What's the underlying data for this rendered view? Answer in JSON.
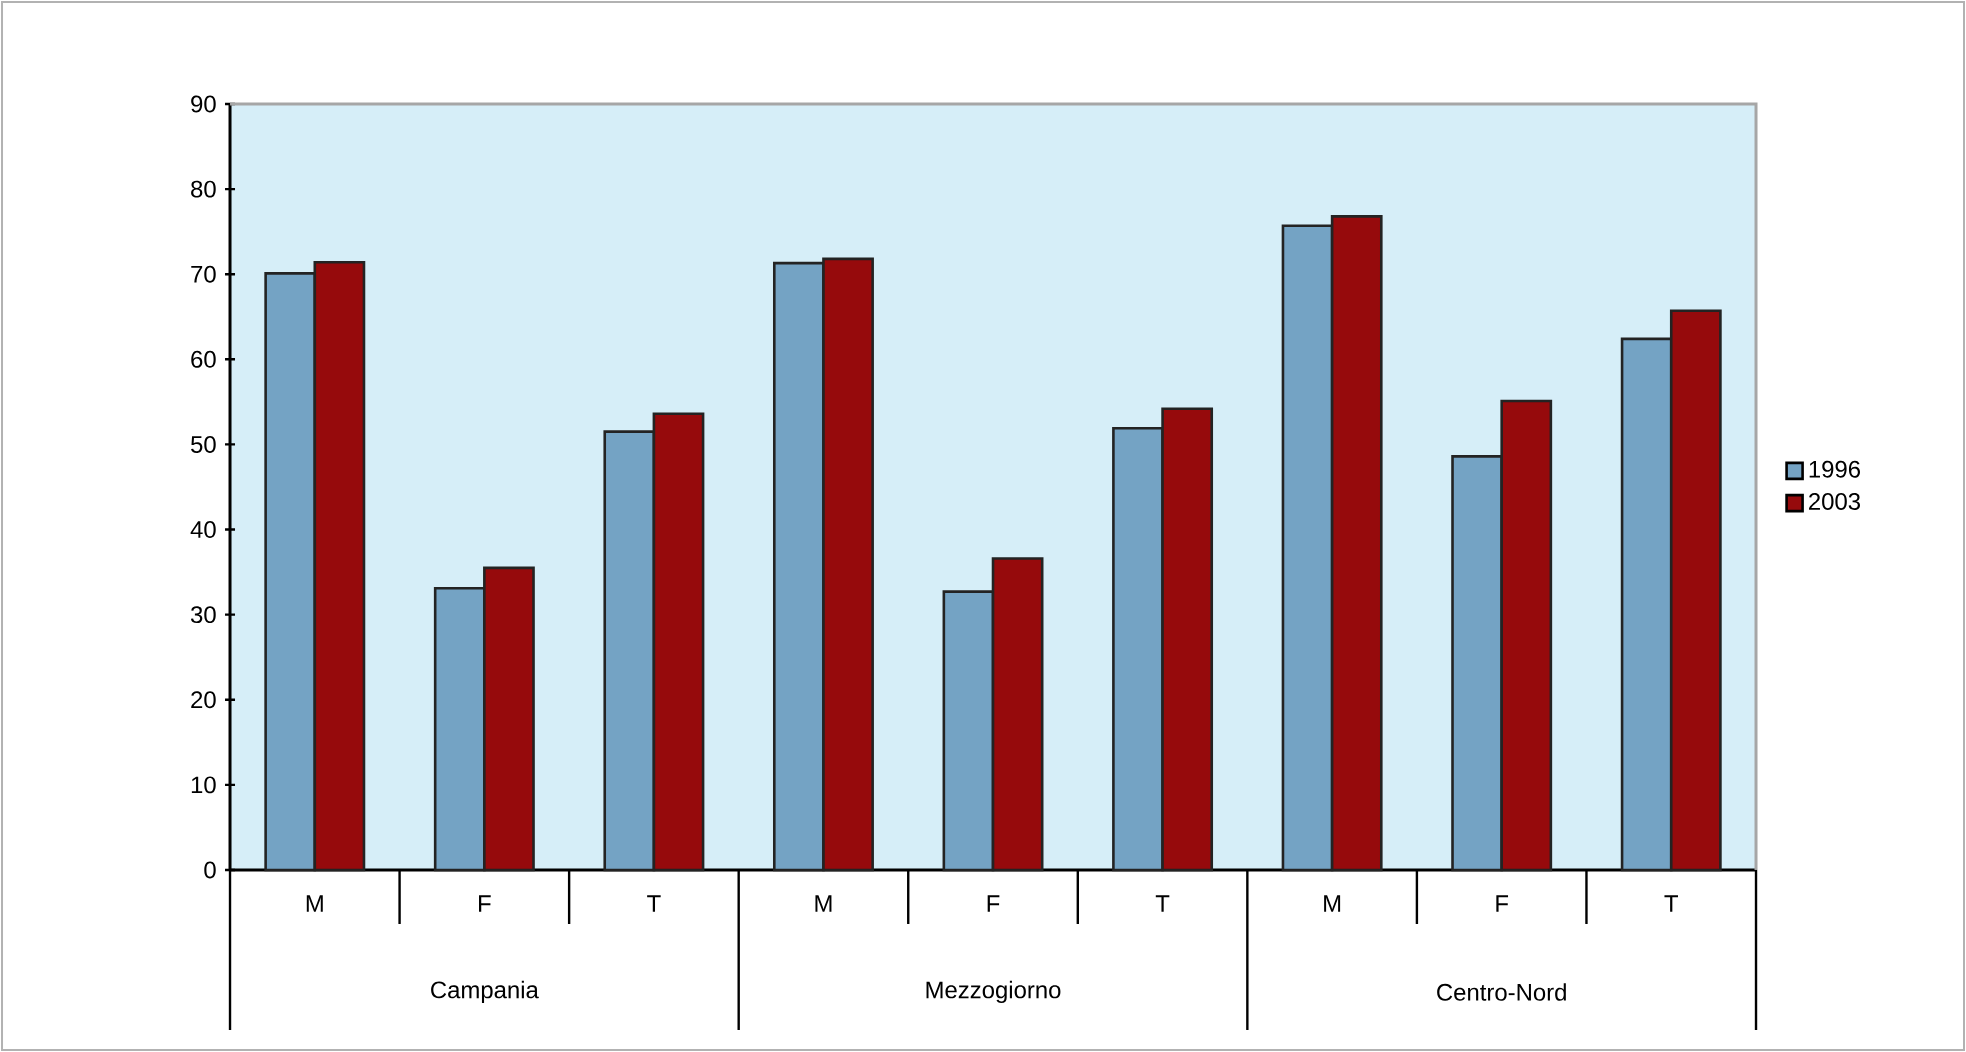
{
  "chart_data": {
    "type": "bar",
    "categories": [
      "M",
      "F",
      "T",
      "M",
      "F",
      "T",
      "M",
      "F",
      "T"
    ],
    "series": [
      {
        "name": "1996",
        "color": "#74a3c4",
        "values": [
          70.1,
          33.1,
          51.5,
          71.3,
          32.7,
          51.9,
          75.7,
          48.6,
          62.4
        ]
      },
      {
        "name": "2003",
        "color": "#960a0c",
        "values": [
          71.4,
          35.5,
          53.6,
          71.8,
          36.6,
          54.2,
          76.8,
          55.1,
          65.7
        ]
      }
    ],
    "annotations": [
      "Campania",
      "Mezzogiorno",
      "Centro-Nord"
    ],
    "ylim": [
      0,
      90
    ],
    "yticks": [
      0,
      10,
      20,
      30,
      40,
      50,
      60,
      70,
      80,
      90
    ],
    "grid": false,
    "legend": "right"
  }
}
